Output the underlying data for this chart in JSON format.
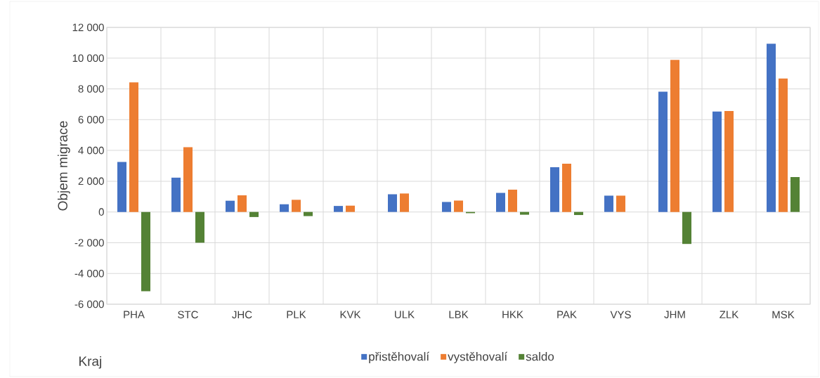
{
  "chart_data": {
    "type": "bar",
    "xlabel": "Kraj",
    "ylabel": "Objem migrace",
    "categories": [
      "PHA",
      "STC",
      "JHC",
      "PLK",
      "KVK",
      "ULK",
      "LBK",
      "HKK",
      "PAK",
      "VYS",
      "JHM",
      "ZLK",
      "MSK"
    ],
    "series": [
      {
        "name": "přistěhovalí",
        "color": "#4472c4",
        "values": [
          3250,
          2230,
          730,
          500,
          390,
          1150,
          650,
          1240,
          2910,
          1060,
          7820,
          6530,
          10940
        ]
      },
      {
        "name": "vystěhovalí",
        "color": "#ed7d31",
        "values": [
          8420,
          4210,
          1080,
          790,
          410,
          1200,
          740,
          1450,
          3140,
          1060,
          9890,
          6560,
          8680
        ]
      },
      {
        "name": "saldo",
        "color": "#548235",
        "values": [
          -5150,
          -2000,
          -330,
          -270,
          0,
          0,
          -80,
          -180,
          -200,
          0,
          -2080,
          0,
          2270
        ]
      }
    ],
    "ylim": [
      -6000,
      12000
    ],
    "yticks": [
      {
        "value": -6000,
        "label": "-6 000"
      },
      {
        "value": -4000,
        "label": "-4 000"
      },
      {
        "value": -2000,
        "label": "-2 000"
      },
      0,
      {
        "value": 2000,
        "label": "2 000"
      },
      {
        "value": 4000,
        "label": "4 000"
      },
      {
        "value": 6000,
        "label": "6 000"
      },
      {
        "value": 8000,
        "label": "8 000"
      },
      {
        "value": 10000,
        "label": "10 000"
      },
      {
        "value": 12000,
        "label": "12 000"
      }
    ],
    "grid": true,
    "legend": "bottom"
  }
}
